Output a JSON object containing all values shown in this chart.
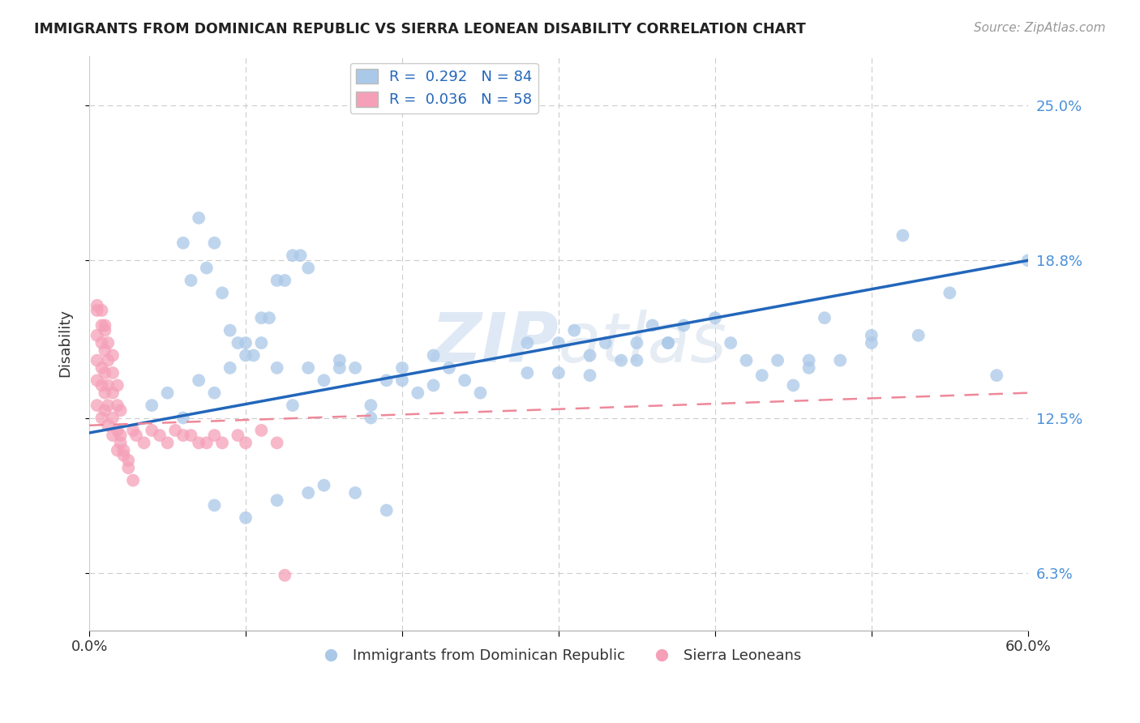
{
  "title": "IMMIGRANTS FROM DOMINICAN REPUBLIC VS SIERRA LEONEAN DISABILITY CORRELATION CHART",
  "source": "Source: ZipAtlas.com",
  "ylabel": "Disability",
  "xlim": [
    0.0,
    0.6
  ],
  "ylim": [
    0.04,
    0.27
  ],
  "xtick_positions": [
    0.0,
    0.1,
    0.2,
    0.3,
    0.4,
    0.5,
    0.6
  ],
  "xticklabels": [
    "0.0%",
    "",
    "",
    "",
    "",
    "",
    "60.0%"
  ],
  "ytick_positions": [
    0.063,
    0.125,
    0.188,
    0.25
  ],
  "ytick_labels": [
    "6.3%",
    "12.5%",
    "18.8%",
    "25.0%"
  ],
  "blue_color": "#aac8e8",
  "pink_color": "#f5a0b8",
  "blue_line_color": "#2266bb",
  "pink_line_color": "#ee8899",
  "legend_label1": "Immigrants from Dominican Republic",
  "legend_label2": "Sierra Leoneans",
  "watermark": "ZIPatlas",
  "blue_line_x0": 0.0,
  "blue_line_y0": 0.119,
  "blue_line_x1": 0.6,
  "blue_line_y1": 0.188,
  "pink_line_x0": 0.0,
  "pink_line_y0": 0.122,
  "pink_line_x1": 0.6,
  "pink_line_y1": 0.135,
  "blue_x": [
    0.04,
    0.06,
    0.07,
    0.08,
    0.09,
    0.1,
    0.11,
    0.12,
    0.13,
    0.14,
    0.05,
    0.065,
    0.075,
    0.085,
    0.095,
    0.105,
    0.115,
    0.125,
    0.135,
    0.06,
    0.07,
    0.08,
    0.09,
    0.1,
    0.11,
    0.12,
    0.13,
    0.14,
    0.15,
    0.16,
    0.17,
    0.18,
    0.19,
    0.2,
    0.21,
    0.22,
    0.23,
    0.24,
    0.25,
    0.28,
    0.3,
    0.31,
    0.32,
    0.33,
    0.34,
    0.35,
    0.36,
    0.37,
    0.38,
    0.4,
    0.41,
    0.42,
    0.43,
    0.44,
    0.45,
    0.46,
    0.47,
    0.5,
    0.52,
    0.53,
    0.55,
    0.58,
    0.6,
    0.5,
    0.48,
    0.46,
    0.35,
    0.37,
    0.28,
    0.3,
    0.32,
    0.16,
    0.18,
    0.2,
    0.22,
    0.08,
    0.1,
    0.12,
    0.14,
    0.15,
    0.17,
    0.19
  ],
  "blue_y": [
    0.13,
    0.195,
    0.205,
    0.195,
    0.16,
    0.155,
    0.165,
    0.18,
    0.19,
    0.185,
    0.135,
    0.18,
    0.185,
    0.175,
    0.155,
    0.15,
    0.165,
    0.18,
    0.19,
    0.125,
    0.14,
    0.135,
    0.145,
    0.15,
    0.155,
    0.145,
    0.13,
    0.145,
    0.14,
    0.145,
    0.145,
    0.13,
    0.14,
    0.145,
    0.135,
    0.15,
    0.145,
    0.14,
    0.135,
    0.155,
    0.155,
    0.16,
    0.15,
    0.155,
    0.148,
    0.155,
    0.162,
    0.155,
    0.162,
    0.165,
    0.155,
    0.148,
    0.142,
    0.148,
    0.138,
    0.148,
    0.165,
    0.158,
    0.198,
    0.158,
    0.175,
    0.142,
    0.188,
    0.155,
    0.148,
    0.145,
    0.148,
    0.155,
    0.143,
    0.143,
    0.142,
    0.148,
    0.125,
    0.14,
    0.138,
    0.09,
    0.085,
    0.092,
    0.095,
    0.098,
    0.095,
    0.088
  ],
  "pink_x": [
    0.005,
    0.008,
    0.01,
    0.012,
    0.015,
    0.018,
    0.02,
    0.022,
    0.025,
    0.028,
    0.005,
    0.008,
    0.01,
    0.012,
    0.015,
    0.018,
    0.02,
    0.022,
    0.025,
    0.005,
    0.008,
    0.01,
    0.012,
    0.015,
    0.018,
    0.02,
    0.005,
    0.008,
    0.01,
    0.012,
    0.015,
    0.018,
    0.005,
    0.008,
    0.01,
    0.012,
    0.015,
    0.005,
    0.008,
    0.01,
    0.028,
    0.03,
    0.035,
    0.04,
    0.045,
    0.05,
    0.055,
    0.06,
    0.065,
    0.07,
    0.075,
    0.08,
    0.085,
    0.095,
    0.1,
    0.11,
    0.12,
    0.125
  ],
  "pink_y": [
    0.13,
    0.125,
    0.128,
    0.122,
    0.118,
    0.112,
    0.115,
    0.11,
    0.105,
    0.1,
    0.14,
    0.138,
    0.135,
    0.13,
    0.125,
    0.12,
    0.118,
    0.112,
    0.108,
    0.148,
    0.145,
    0.143,
    0.138,
    0.135,
    0.13,
    0.128,
    0.158,
    0.155,
    0.152,
    0.148,
    0.143,
    0.138,
    0.168,
    0.162,
    0.16,
    0.155,
    0.15,
    0.17,
    0.168,
    0.162,
    0.12,
    0.118,
    0.115,
    0.12,
    0.118,
    0.115,
    0.12,
    0.118,
    0.118,
    0.115,
    0.115,
    0.118,
    0.115,
    0.118,
    0.115,
    0.12,
    0.115,
    0.062
  ]
}
